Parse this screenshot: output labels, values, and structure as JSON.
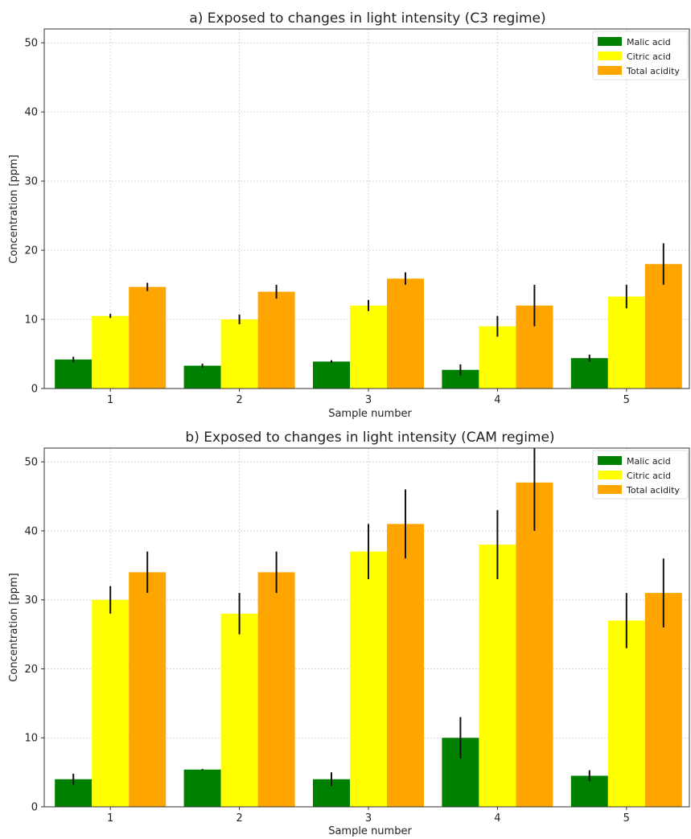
{
  "chart_data": [
    {
      "type": "bar",
      "title": "a) Exposed to changes in light intensity (C3 regime)",
      "xlabel": "Sample number",
      "ylabel": "Concentration [ppm]",
      "categories": [
        "1",
        "2",
        "3",
        "4",
        "5"
      ],
      "ylim": [
        0,
        52
      ],
      "yticks": [
        0,
        10,
        20,
        30,
        40,
        50
      ],
      "grid": true,
      "legend_position": "top-right",
      "series": [
        {
          "name": "Malic acid",
          "color": "#008000",
          "values": [
            4.2,
            3.3,
            3.9,
            2.7,
            4.4
          ],
          "errors": [
            0.4,
            0.3,
            0.2,
            0.8,
            0.5
          ]
        },
        {
          "name": "Citric acid",
          "color": "#ffff00",
          "values": [
            10.5,
            10.0,
            12.0,
            9.0,
            13.3
          ],
          "errors": [
            0.3,
            0.7,
            0.8,
            1.5,
            1.7
          ]
        },
        {
          "name": "Total acidity",
          "color": "#ffa500",
          "values": [
            14.7,
            14.0,
            15.9,
            12.0,
            18.0
          ],
          "errors": [
            0.6,
            1.0,
            0.9,
            3.0,
            3.0
          ]
        }
      ]
    },
    {
      "type": "bar",
      "title": "b) Exposed to changes in light intensity (CAM regime)",
      "xlabel": "Sample number",
      "ylabel": "Concentration [ppm]",
      "categories": [
        "1",
        "2",
        "3",
        "4",
        "5"
      ],
      "ylim": [
        0,
        52
      ],
      "yticks": [
        0,
        10,
        20,
        30,
        40,
        50
      ],
      "grid": true,
      "legend_position": "top-right",
      "series": [
        {
          "name": "Malic acid",
          "color": "#008000",
          "values": [
            4.0,
            5.4,
            4.0,
            10.0,
            4.5
          ],
          "errors": [
            0.8,
            0.1,
            1.0,
            3.0,
            0.8
          ]
        },
        {
          "name": "Citric acid",
          "color": "#ffff00",
          "values": [
            30.0,
            28.0,
            37.0,
            38.0,
            27.0
          ],
          "errors": [
            2.0,
            3.0,
            4.0,
            5.0,
            4.0
          ]
        },
        {
          "name": "Total acidity",
          "color": "#ffa500",
          "values": [
            34.0,
            34.0,
            41.0,
            47.0,
            31.0
          ],
          "errors": [
            3.0,
            3.0,
            5.0,
            7.0,
            5.0
          ]
        }
      ]
    }
  ]
}
